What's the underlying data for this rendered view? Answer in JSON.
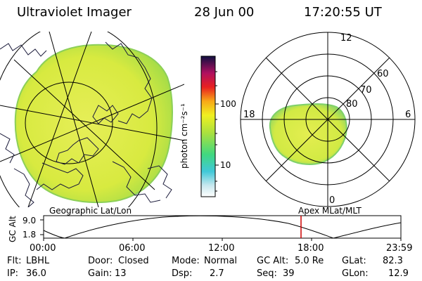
{
  "header": {
    "instrument": "Ultraviolet Imager",
    "date": "28 Jun 00",
    "time": "17:20:55 UT"
  },
  "colorbar": {
    "unit_label": "photon cm⁻²s⁻¹",
    "ticks": [
      "100",
      "10"
    ]
  },
  "polar_plot": {
    "mlt_labels": [
      "12",
      "18",
      "6",
      "0"
    ],
    "lat_labels": [
      "60",
      "70",
      "80"
    ]
  },
  "panel_labels": {
    "left": "Geographic Lat/Lon",
    "right": "Apex MLat/MLT"
  },
  "altitude_plot": {
    "ylabel": "GC Alt",
    "ytick_top": "9.0",
    "ytick_bottom": "1.8",
    "xticks": [
      "00:00",
      "06:00",
      "12:00",
      "18:00",
      "23:59"
    ],
    "marker_time": "17:20:55"
  },
  "info": {
    "filter_label": "Flt:",
    "filter_value": "LBHL",
    "ip_label": "IP:",
    "ip_value": "36.0",
    "door_label": "Door:",
    "door_value": "Closed",
    "gain_label": "Gain:",
    "gain_value": "13",
    "mode_label": "Mode:",
    "mode_value": "Normal",
    "dsp_label": "Dsp:",
    "dsp_value": "2.7",
    "gcalt_label": "GC Alt:",
    "gcalt_value": "5.0 Re",
    "seq_label": "Seq:",
    "seq_value": "39",
    "glat_label": "GLat:",
    "glat_value": "82.3",
    "glon_label": "GLon:",
    "glon_value": "12.9"
  },
  "colors": {
    "image_fill": "#d8ea3a",
    "image_edge": "#9ad84a",
    "marker": "#cc0000"
  }
}
